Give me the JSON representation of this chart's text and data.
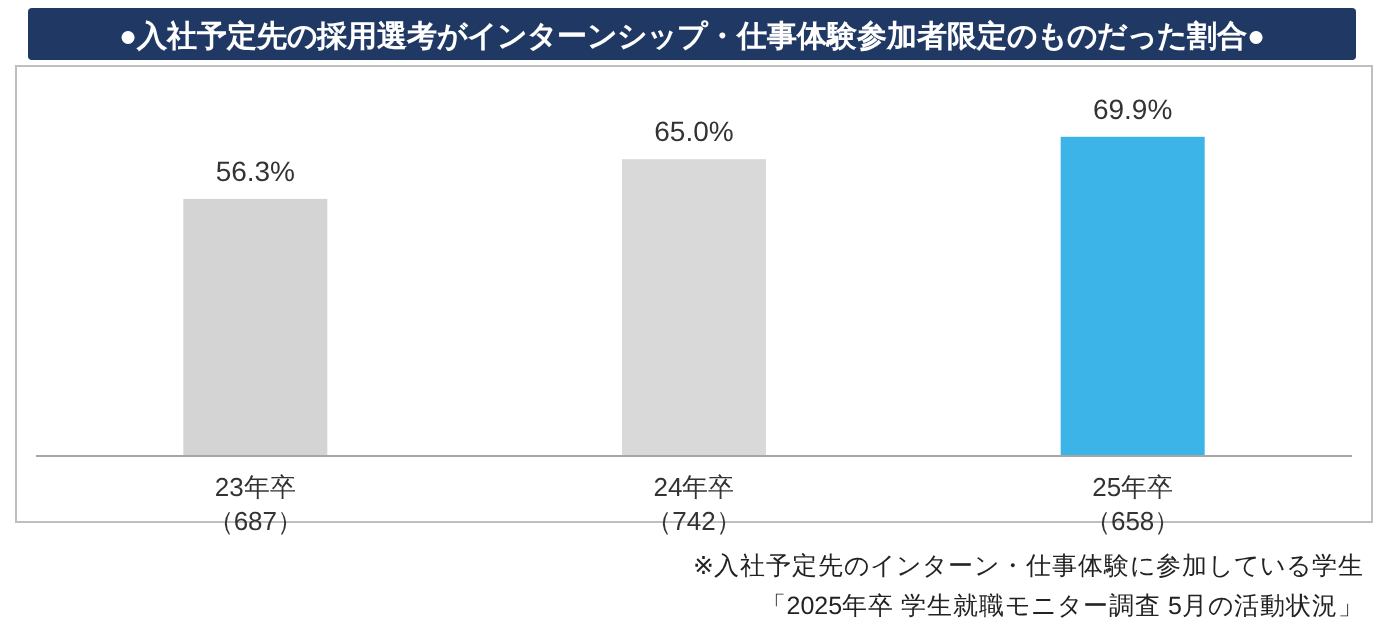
{
  "chart_data": {
    "type": "bar",
    "title": "●入社予定先の採用選考がインターンシップ・仕事体験参加者限定のものだった割合●",
    "categories": [
      "23年卒（687）",
      "24年卒（742）",
      "25年卒（658）"
    ],
    "values": [
      56.3,
      65.0,
      69.9
    ],
    "value_labels": [
      "56.3%",
      "65.0%",
      "69.9%"
    ],
    "colors": [
      "#d4d4d4",
      "#d9d9d9",
      "#3cb4e8"
    ],
    "annotations": [
      "※入社予定先のインターン・仕事体験に参加している学生",
      "「2025年卒 学生就職モニター調査 5月の活動状況」"
    ]
  }
}
